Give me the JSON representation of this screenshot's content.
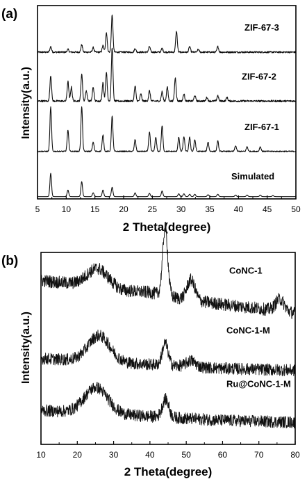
{
  "chart_data": [
    {
      "type": "line",
      "panel_label": "(a)",
      "xlabel": "2 Theta(degree)",
      "ylabel": "Intensity(a.u.)",
      "xlim": [
        5,
        50
      ],
      "x_ticks": [
        "5",
        "10",
        "15",
        "20",
        "25",
        "30",
        "35",
        "40",
        "45",
        "50"
      ],
      "x_tick_values": [
        5,
        10,
        15,
        20,
        25,
        30,
        35,
        40,
        45,
        50
      ],
      "series": [
        {
          "name": "ZIF-67-3",
          "offset": 3.1,
          "baseline": 0.05,
          "noise": 0.035,
          "peaks": [
            [
              7.3,
              0.12
            ],
            [
              10.3,
              0.06
            ],
            [
              12.7,
              0.16
            ],
            [
              14.7,
              0.1
            ],
            [
              16.4,
              0.14
            ],
            [
              17.0,
              0.42
            ],
            [
              18.0,
              0.8
            ],
            [
              22.0,
              0.08
            ],
            [
              24.5,
              0.12
            ],
            [
              26.7,
              0.08
            ],
            [
              29.2,
              0.45
            ],
            [
              31.5,
              0.12
            ],
            [
              33.0,
              0.06
            ],
            [
              36.4,
              0.12
            ]
          ]
        },
        {
          "name": "ZIF-67-2",
          "offset": 2.05,
          "baseline": 0.05,
          "noise": 0.04,
          "peaks": [
            [
              7.3,
              0.55
            ],
            [
              10.3,
              0.42
            ],
            [
              10.9,
              0.3
            ],
            [
              12.7,
              0.58
            ],
            [
              13.5,
              0.22
            ],
            [
              14.7,
              0.3
            ],
            [
              16.4,
              0.4
            ],
            [
              17.0,
              0.62
            ],
            [
              18.0,
              1.15
            ],
            [
              22.0,
              0.32
            ],
            [
              23.0,
              0.15
            ],
            [
              24.5,
              0.22
            ],
            [
              26.7,
              0.2
            ],
            [
              27.6,
              0.3
            ],
            [
              29.0,
              0.5
            ],
            [
              30.5,
              0.15
            ],
            [
              32.4,
              0.12
            ],
            [
              34.5,
              0.08
            ],
            [
              36.4,
              0.12
            ],
            [
              38.0,
              0.08
            ]
          ]
        },
        {
          "name": "ZIF-67-1",
          "offset": 1.0,
          "baseline": 0.02,
          "noise": 0.025,
          "peaks": [
            [
              7.3,
              0.95
            ],
            [
              10.3,
              0.45
            ],
            [
              12.7,
              0.95
            ],
            [
              14.7,
              0.2
            ],
            [
              16.4,
              0.35
            ],
            [
              18.0,
              0.75
            ],
            [
              22.0,
              0.25
            ],
            [
              24.5,
              0.42
            ],
            [
              25.6,
              0.3
            ],
            [
              26.7,
              0.55
            ],
            [
              29.6,
              0.3
            ],
            [
              30.5,
              0.32
            ],
            [
              31.5,
              0.3
            ],
            [
              32.4,
              0.25
            ],
            [
              34.7,
              0.2
            ],
            [
              36.4,
              0.22
            ],
            [
              39.5,
              0.12
            ],
            [
              41.5,
              0.1
            ],
            [
              43.8,
              0.1
            ]
          ]
        },
        {
          "name": "Simulated",
          "offset": 0.05,
          "baseline": 0.0,
          "noise": 0.0,
          "peaks": [
            [
              7.3,
              0.5
            ],
            [
              10.3,
              0.14
            ],
            [
              12.7,
              0.32
            ],
            [
              14.7,
              0.08
            ],
            [
              16.4,
              0.14
            ],
            [
              18.0,
              0.2
            ],
            [
              22.0,
              0.08
            ],
            [
              24.5,
              0.07
            ],
            [
              26.7,
              0.12
            ],
            [
              29.6,
              0.06
            ],
            [
              30.5,
              0.06
            ],
            [
              31.5,
              0.05
            ],
            [
              32.4,
              0.05
            ],
            [
              34.7,
              0.04
            ],
            [
              36.4,
              0.05
            ],
            [
              39.5,
              0.03
            ],
            [
              41.5,
              0.03
            ],
            [
              43.8,
              0.03
            ],
            [
              46.0,
              0.02
            ]
          ]
        }
      ]
    },
    {
      "type": "line",
      "panel_label": "(b)",
      "xlabel": "2 Theta(degree)",
      "ylabel": "Intensity(a.u.)",
      "xlim": [
        10,
        80
      ],
      "x_ticks": [
        "10",
        "20",
        "30",
        "40",
        "50",
        "60",
        "70",
        "80"
      ],
      "x_tick_values": [
        10,
        20,
        30,
        40,
        50,
        60,
        70,
        80
      ],
      "series": [
        {
          "name": "CoNC-1",
          "offset": 3.1,
          "baseline_points": [
            [
              10,
              1.0
            ],
            [
              20,
              0.9
            ],
            [
              26,
              0.95
            ],
            [
              32,
              0.75
            ],
            [
              40,
              0.7
            ],
            [
              48,
              0.55
            ],
            [
              60,
              0.4
            ],
            [
              70,
              0.3
            ],
            [
              80,
              0.18
            ]
          ],
          "noise": 0.32,
          "peaks": [
            [
              25.5,
              0.35,
              3.0
            ],
            [
              44.2,
              1.7,
              0.7
            ],
            [
              51.3,
              0.5,
              1.1
            ],
            [
              75.8,
              0.3,
              1.2
            ]
          ]
        },
        {
          "name": "CoNC-1-M",
          "offset": 1.85,
          "baseline_points": [
            [
              10,
              0.3
            ],
            [
              20,
              0.25
            ],
            [
              30,
              0.2
            ],
            [
              40,
              0.15
            ],
            [
              60,
              0.05
            ],
            [
              80,
              0.0
            ]
          ],
          "noise": 0.3,
          "peaks": [
            [
              26.0,
              0.65,
              3.0
            ],
            [
              44.2,
              0.55,
              0.8
            ],
            [
              51.3,
              0.15,
              1.2
            ]
          ]
        },
        {
          "name": "Ru@CoNC-1-M",
          "offset": 0.55,
          "baseline_points": [
            [
              10,
              0.3
            ],
            [
              20,
              0.25
            ],
            [
              30,
              0.2
            ],
            [
              40,
              0.15
            ],
            [
              60,
              0.05
            ],
            [
              80,
              0.0
            ]
          ],
          "noise": 0.3,
          "peaks": [
            [
              25.2,
              0.65,
              3.2
            ],
            [
              44.3,
              0.45,
              0.9
            ]
          ]
        }
      ]
    }
  ]
}
